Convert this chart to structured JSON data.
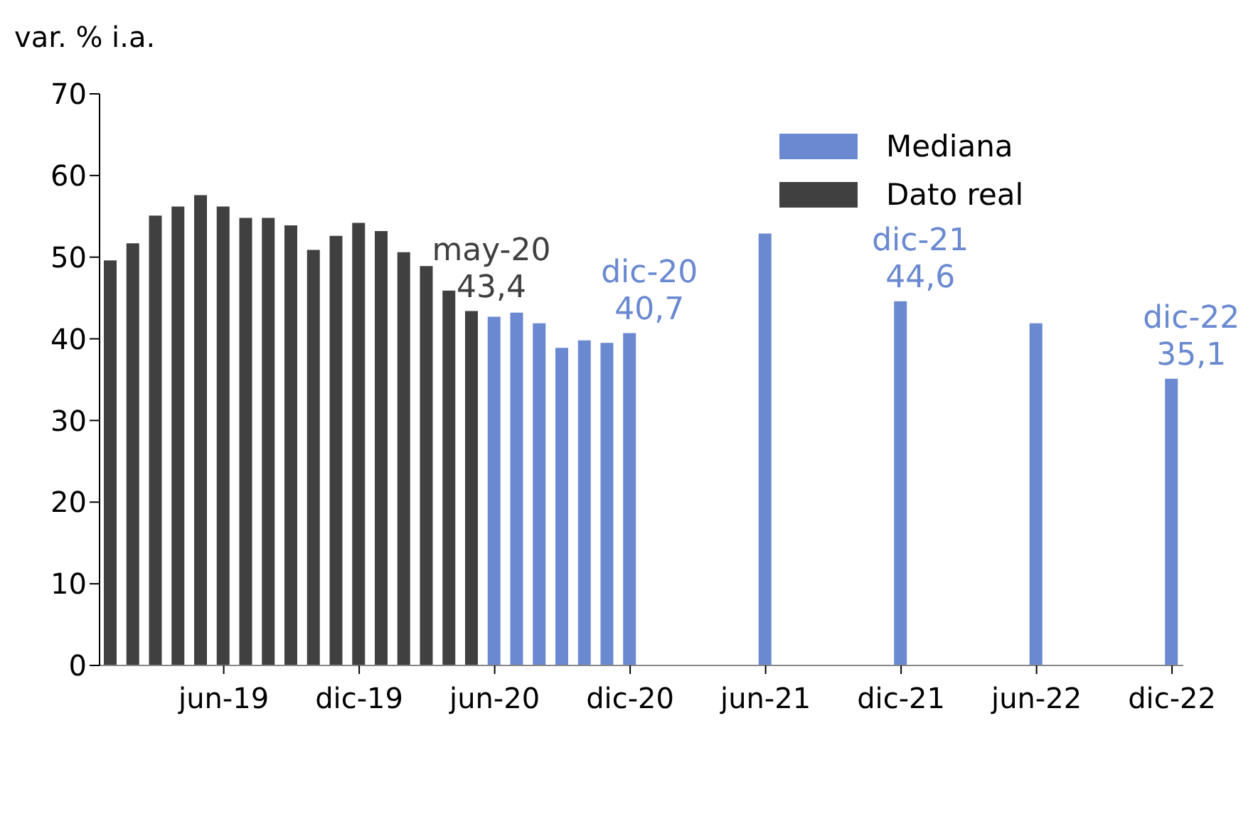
{
  "chart_data": {
    "type": "bar",
    "ylabel": "var. % i.a.",
    "categories": [
      null,
      null,
      null,
      null,
      null,
      "jun-19",
      null,
      null,
      null,
      null,
      null,
      "dic-19",
      null,
      null,
      null,
      null,
      null,
      "jun-20",
      null,
      null,
      null,
      null,
      null,
      "dic-20",
      null,
      null,
      null,
      null,
      null,
      "jun-21",
      null,
      null,
      null,
      null,
      null,
      "dic-21",
      null,
      null,
      null,
      null,
      null,
      "jun-22",
      null,
      null,
      null,
      null,
      null,
      "dic-22"
    ],
    "series": [
      {
        "name": "Mediana",
        "color": "#6a89d0",
        "values": [
          null,
          null,
          null,
          null,
          null,
          null,
          null,
          null,
          null,
          null,
          null,
          null,
          null,
          null,
          null,
          null,
          null,
          42.7,
          43.2,
          41.9,
          38.9,
          39.8,
          39.5,
          40.7,
          null,
          null,
          null,
          null,
          null,
          52.9,
          null,
          null,
          null,
          null,
          null,
          44.6,
          null,
          null,
          null,
          null,
          null,
          41.9,
          null,
          null,
          null,
          null,
          null,
          35.1
        ],
        "value_labels": [
          null,
          null,
          null,
          null,
          null,
          null,
          null,
          null,
          null,
          null,
          null,
          null,
          null,
          null,
          null,
          null,
          null,
          null,
          null,
          null,
          null,
          null,
          null,
          "dic-20\n40,7",
          null,
          null,
          null,
          null,
          null,
          null,
          null,
          null,
          null,
          null,
          null,
          "dic-21\n44,6",
          null,
          null,
          null,
          null,
          null,
          null,
          null,
          null,
          null,
          null,
          null,
          "dic-22\n35,1"
        ]
      },
      {
        "name": "Dato real",
        "color": "#404040",
        "values": [
          49.6,
          51.7,
          55.1,
          56.2,
          57.6,
          56.2,
          54.8,
          54.8,
          53.9,
          50.9,
          52.6,
          54.2,
          53.2,
          50.6,
          48.9,
          45.9,
          43.4,
          null,
          null,
          null,
          null,
          null,
          null,
          null,
          null,
          null,
          null,
          null,
          null,
          null,
          null,
          null,
          null,
          null,
          null,
          null,
          null,
          null,
          null,
          null,
          null,
          null,
          null,
          null,
          null,
          null,
          null,
          null
        ],
        "value_labels": [
          null,
          null,
          null,
          null,
          null,
          null,
          null,
          null,
          null,
          null,
          null,
          null,
          null,
          null,
          null,
          null,
          "may-20\n43,4",
          null,
          null,
          null,
          null,
          null,
          null,
          null,
          null,
          null,
          null,
          null,
          null,
          null,
          null,
          null,
          null,
          null,
          null,
          null,
          null,
          null,
          null,
          null,
          null,
          null,
          null,
          null,
          null,
          null,
          null,
          null
        ]
      }
    ],
    "ylim": [
      0,
      70
    ],
    "yticks": [
      0,
      10,
      20,
      30,
      40,
      50,
      60,
      70
    ],
    "grid": false,
    "legend": "top right"
  }
}
